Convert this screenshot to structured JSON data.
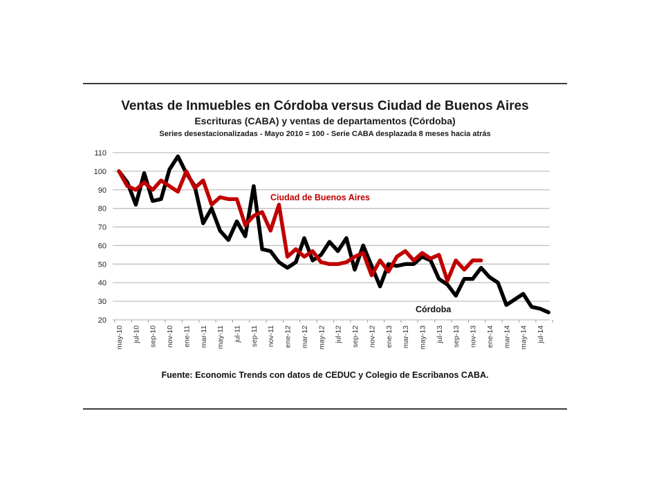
{
  "header": {
    "title": "Ventas de Inmuebles en Córdoba versus Ciudad de Buenos Aires",
    "subtitle": "Escrituras (CABA) y ventas de departamentos (Córdoba)",
    "note": "Series desestacionalizadas - Mayo 2010 = 100 - Serie CABA desplazada 8 meses hacia atrás"
  },
  "footer": {
    "source": "Fuente: Economic Trends con datos de CEDUC y Colegio de Escribanos CABA."
  },
  "labels": {
    "caba": "Ciudad de Buenos Aires",
    "cordoba": "Córdoba"
  },
  "colors": {
    "caba": "#c00000",
    "cordoba": "#000000",
    "grid": "#bfbfbf"
  },
  "chart_data": {
    "type": "line",
    "title": "Ventas de Inmuebles en Córdoba versus Ciudad de Buenos Aires",
    "subtitle": "Escrituras (CABA) y ventas de departamentos (Córdoba) — Series desestacionalizadas - Mayo 2010 = 100 - Serie CABA desplazada 8 meses hacia atrás",
    "xlabel": "",
    "ylabel": "",
    "ylim": [
      20,
      110
    ],
    "yticks": [
      20,
      30,
      40,
      50,
      60,
      70,
      80,
      90,
      100,
      110
    ],
    "grid": true,
    "legend": "inline labels",
    "x_tick_labels": [
      "may-10",
      "jul-10",
      "sep-10",
      "nov-10",
      "ene-11",
      "mar-11",
      "may-11",
      "jul-11",
      "sep-11",
      "nov-11",
      "ene-12",
      "mar-12",
      "may-12",
      "jul-12",
      "sep-12",
      "nov-12",
      "ene-13",
      "mar-13",
      "may-13",
      "jul-13",
      "sep-13",
      "nov-13",
      "ene-14",
      "mar-14",
      "may-14",
      "jul-14"
    ],
    "x_start": "may-10",
    "x_step": "1 month",
    "series": [
      {
        "name": "Córdoba",
        "color": "#000000",
        "values": [
          100,
          94,
          82,
          99,
          84,
          85,
          101,
          108,
          99,
          92,
          72,
          80,
          68,
          63,
          73,
          65,
          92,
          58,
          57,
          51,
          48,
          51,
          64,
          52,
          55,
          62,
          57,
          64,
          47,
          60,
          49,
          38,
          50,
          49,
          50,
          50,
          54,
          52,
          42,
          39,
          33,
          42,
          42,
          48,
          43,
          40,
          28,
          31,
          34,
          27,
          26,
          24
        ]
      },
      {
        "name": "Ciudad de Buenos Aires",
        "color": "#c00000",
        "values": [
          100,
          92,
          90,
          94,
          90,
          95,
          92,
          89,
          100,
          91,
          95,
          82,
          86,
          85,
          85,
          71,
          76,
          78,
          68,
          82,
          54,
          58,
          54,
          57,
          51,
          50,
          50,
          51,
          54,
          56,
          44,
          52,
          46,
          54,
          57,
          52,
          56,
          53,
          55,
          41,
          52,
          47,
          52,
          52
        ]
      }
    ]
  }
}
